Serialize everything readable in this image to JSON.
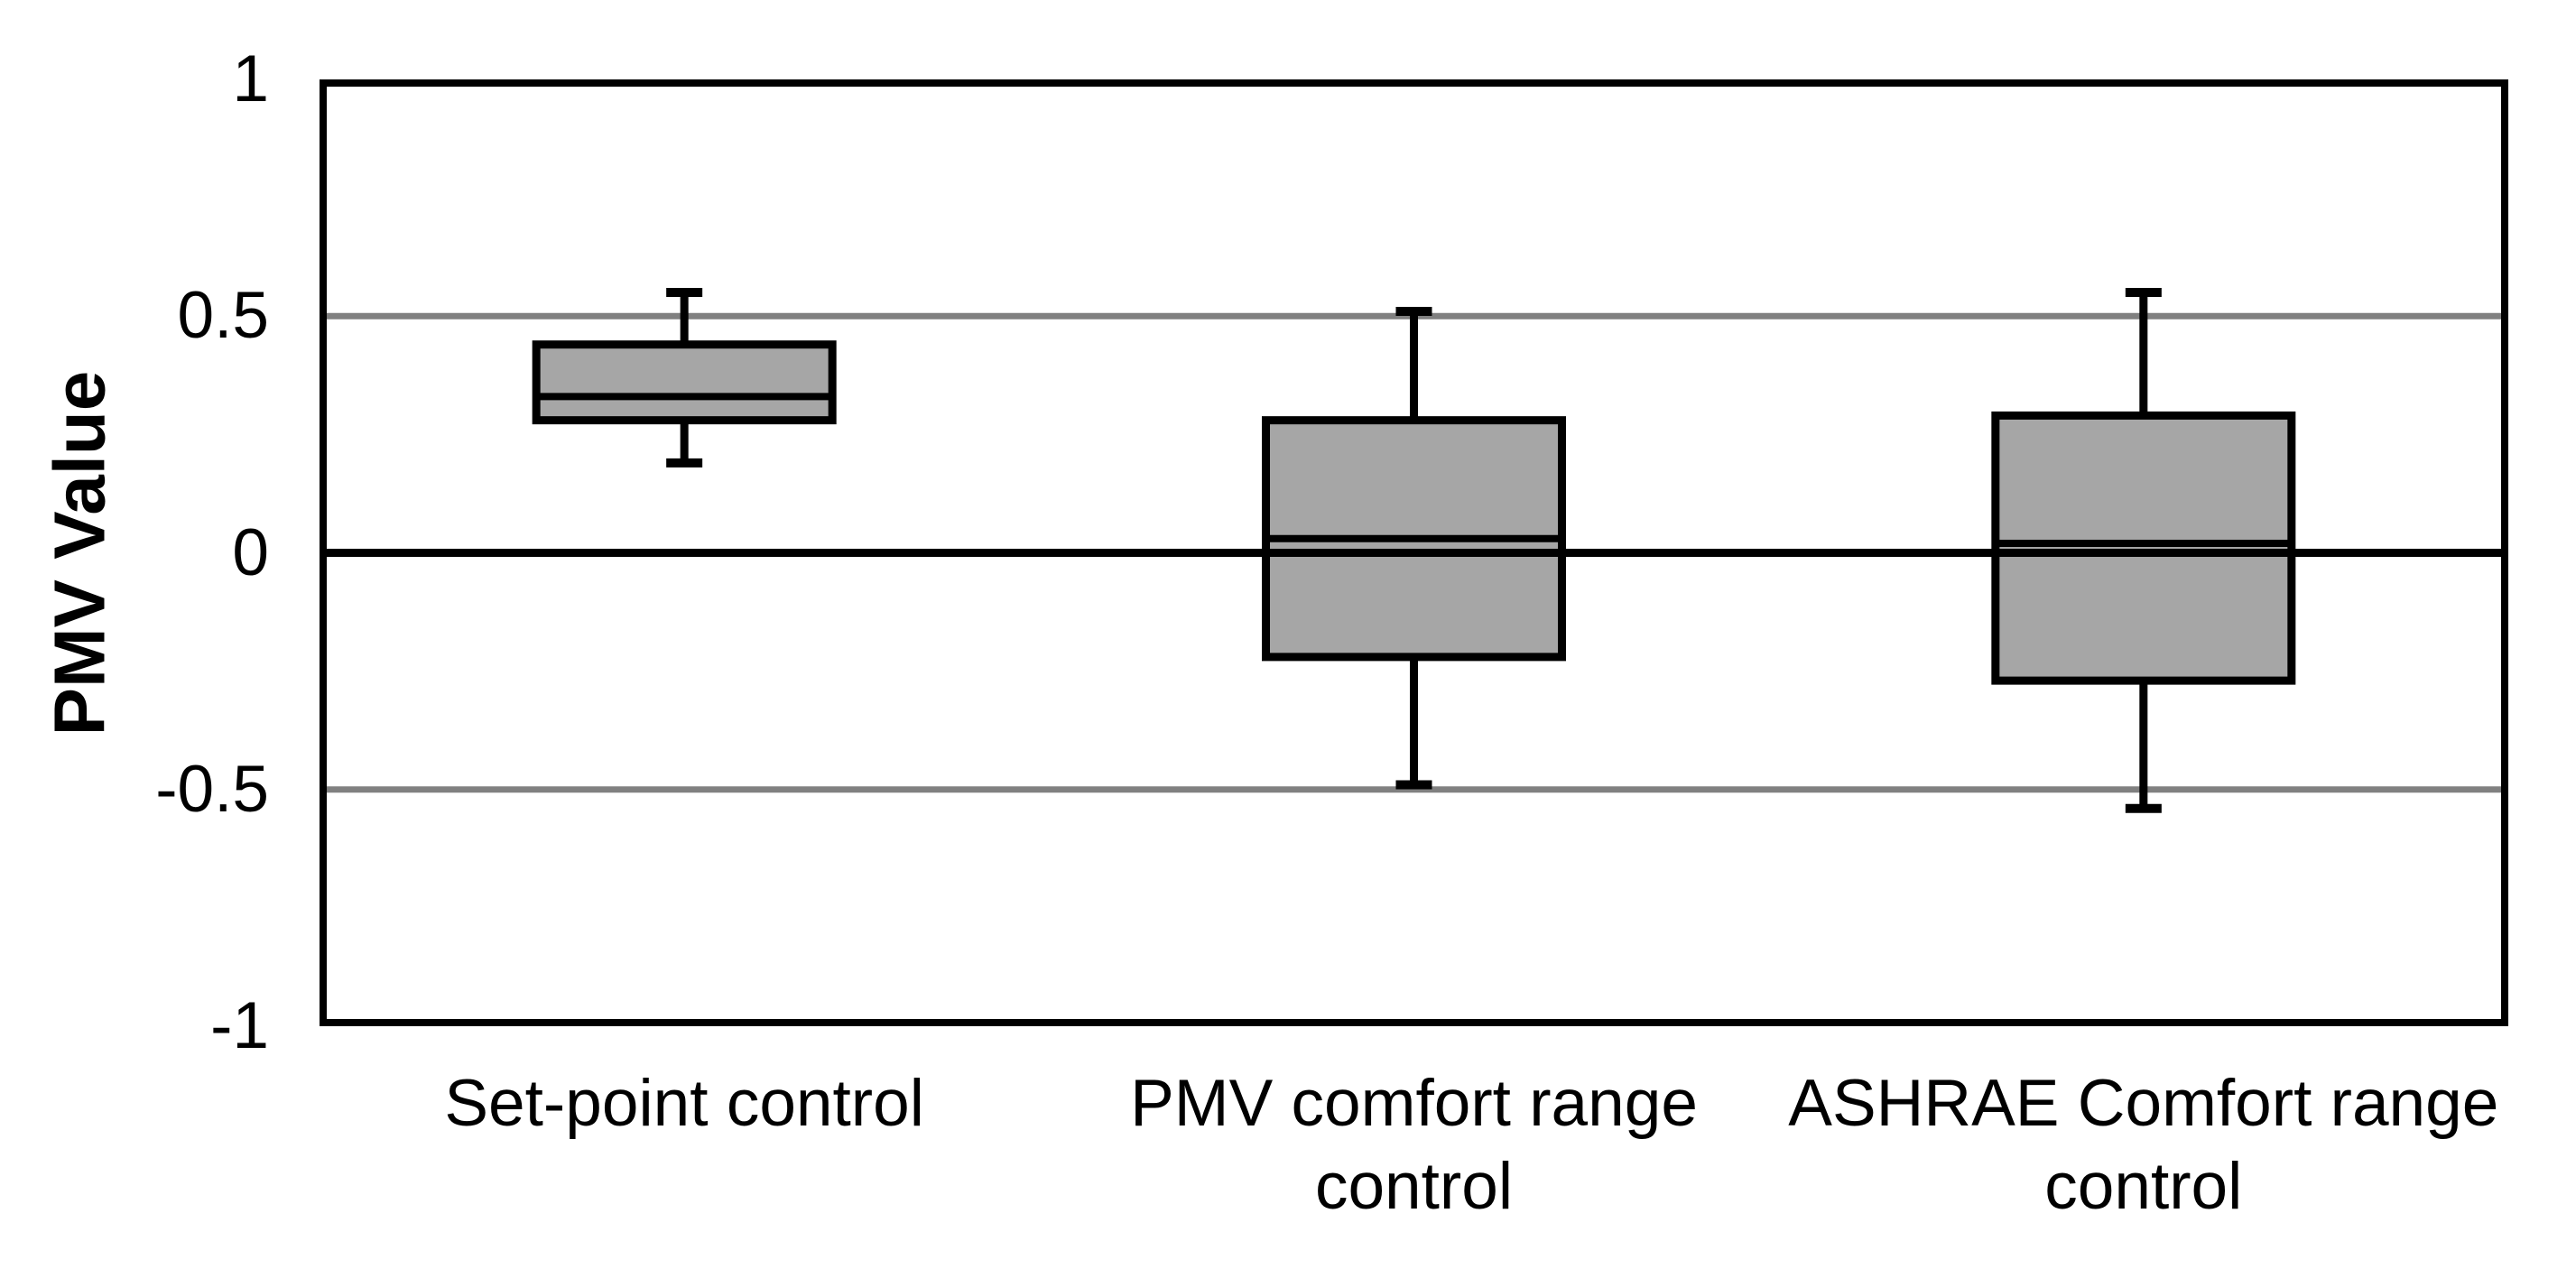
{
  "chart_data": {
    "type": "boxplot",
    "title": "",
    "ylabel": "PMV Value",
    "xlabel": "",
    "ylim": [
      -1,
      1
    ],
    "grid": "horizontal-major",
    "legend": "none",
    "yticks": [
      {
        "label": "1",
        "value": 1
      },
      {
        "label": "0.5",
        "value": 0.5
      },
      {
        "label": "0",
        "value": 0
      },
      {
        "label": "-0.5",
        "value": -0.5
      },
      {
        "label": "-1",
        "value": -1
      }
    ],
    "gridline_values": [
      0.5,
      -0.5
    ],
    "zero_line_value": 0,
    "categories": [
      "Set-point control",
      "PMV comfort range\ncontrol",
      "ASHRAE Comfort range\ncontrol"
    ],
    "series": [
      {
        "name": "Set-point control",
        "min": 0.19,
        "q1": 0.28,
        "median": 0.33,
        "q3": 0.44,
        "max": 0.55
      },
      {
        "name": "PMV comfort range control",
        "min": -0.49,
        "q1": -0.22,
        "median": 0.03,
        "q3": 0.28,
        "max": 0.51
      },
      {
        "name": "ASHRAE Comfort range control",
        "min": -0.54,
        "q1": -0.27,
        "median": 0.02,
        "q3": 0.29,
        "max": 0.55
      }
    ],
    "colors": {
      "box_fill": "#A6A6A6",
      "box_border": "#000000",
      "gridline": "#808080",
      "zero_line": "#000000",
      "frame": "#000000",
      "text": "#000000",
      "background": "#FFFFFF"
    }
  }
}
